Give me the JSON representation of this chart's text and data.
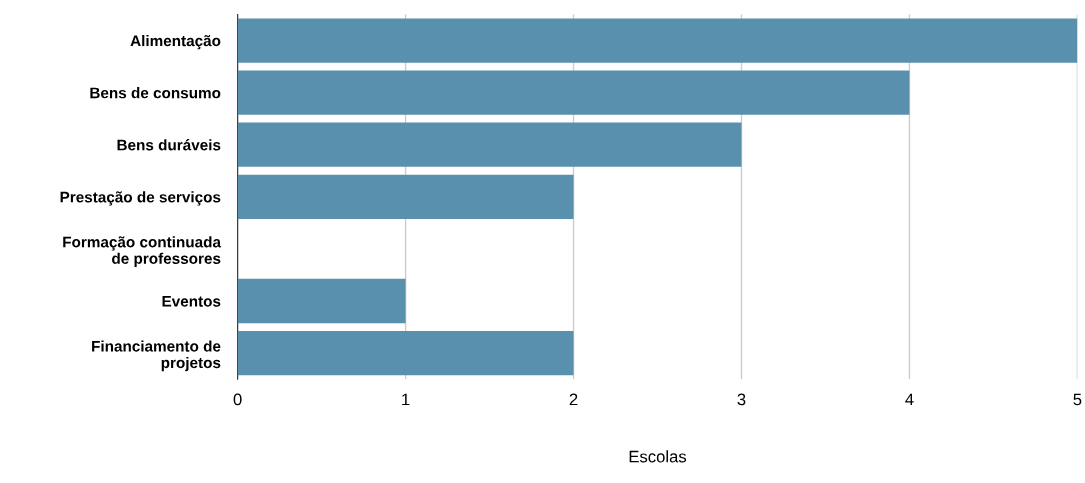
{
  "chart_data": {
    "type": "bar",
    "orientation": "horizontal",
    "xlabel": "Escolas",
    "categories": [
      "Alimentação",
      "Bens de consumo",
      "Bens duráveis",
      "Prestação de serviços",
      "Formação continuada de professores",
      "Eventos",
      "Financiamento de projetos"
    ],
    "values": [
      5,
      4,
      3,
      2,
      0,
      1,
      2
    ],
    "color": "#5890ae",
    "xlim": [
      0,
      5
    ],
    "xticks": [
      0,
      1,
      2,
      3,
      4,
      5
    ],
    "grid": "x",
    "legend": false
  }
}
